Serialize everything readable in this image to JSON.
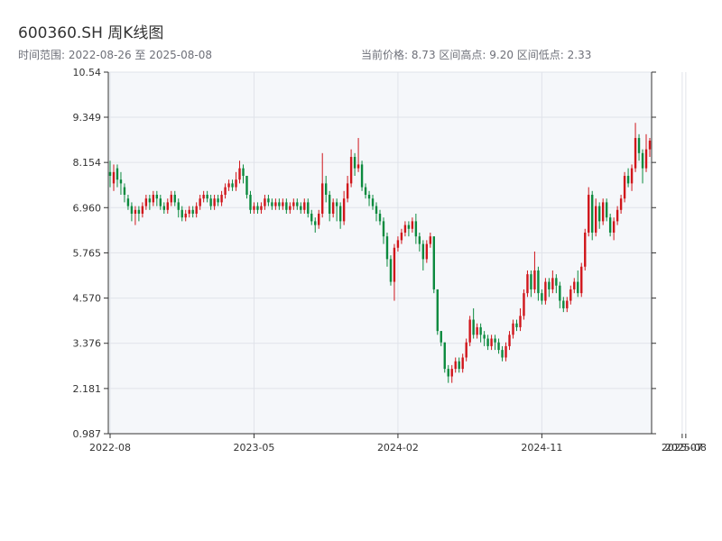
{
  "header": {
    "title": "600360.SH 周K线图",
    "range_text": "时间范围: 2022-08-26 至 2025-08-08",
    "stats_text": "当前价格: 8.73   区间高点: 9.20   区间低点: 2.33"
  },
  "colors": {
    "up": "#d0161b",
    "down": "#0b8a3e",
    "plot_bg": "#f5f7fa",
    "grid": "#e0e3ea",
    "axis": "#333333"
  },
  "chart_data": {
    "type": "candlestick",
    "title": "600360.SH 周K线图",
    "y_axis": {
      "min": 0.987,
      "max": 10.54,
      "ticks": [
        0.987,
        2.181,
        3.376,
        4.57,
        5.765,
        6.96,
        8.154,
        9.349,
        10.54
      ],
      "tick_labels": [
        "0.987",
        "2.181",
        "3.376",
        "4.570",
        "5.765",
        "6.960",
        "8.154",
        "9.349",
        "10.54"
      ]
    },
    "x_axis": {
      "tick_labels": [
        "2022-08",
        "2023-05",
        "2024-02",
        "2024-11",
        "2025-07",
        "2025-08"
      ],
      "tick_index": [
        0,
        40,
        80,
        120,
        159,
        160
      ]
    },
    "grid": true,
    "candles": [
      [
        7.9,
        7.8,
        8.2,
        7.5
      ],
      [
        7.6,
        7.9,
        8.1,
        7.4
      ],
      [
        8.0,
        7.7,
        8.1,
        7.5
      ],
      [
        7.7,
        7.6,
        7.9,
        7.3
      ],
      [
        7.5,
        7.3,
        7.6,
        7.1
      ],
      [
        7.2,
        7.0,
        7.3,
        6.9
      ],
      [
        7.0,
        6.8,
        7.1,
        6.6
      ],
      [
        6.8,
        6.9,
        7.0,
        6.5
      ],
      [
        6.9,
        6.8,
        7.0,
        6.6
      ],
      [
        6.8,
        7.0,
        7.1,
        6.7
      ],
      [
        7.0,
        7.2,
        7.3,
        6.9
      ],
      [
        7.2,
        7.1,
        7.3,
        6.9
      ],
      [
        7.1,
        7.3,
        7.4,
        7.0
      ],
      [
        7.3,
        7.2,
        7.4,
        7.0
      ],
      [
        7.2,
        7.0,
        7.3,
        6.9
      ],
      [
        7.0,
        6.9,
        7.1,
        6.8
      ],
      [
        6.9,
        7.1,
        7.2,
        6.8
      ],
      [
        7.1,
        7.3,
        7.4,
        7.0
      ],
      [
        7.3,
        7.1,
        7.4,
        7.0
      ],
      [
        7.1,
        6.9,
        7.2,
        6.7
      ],
      [
        6.9,
        6.7,
        7.0,
        6.6
      ],
      [
        6.7,
        6.8,
        6.9,
        6.6
      ],
      [
        6.8,
        6.9,
        7.0,
        6.7
      ],
      [
        6.9,
        6.8,
        7.0,
        6.7
      ],
      [
        6.8,
        7.0,
        7.1,
        6.7
      ],
      [
        7.0,
        7.2,
        7.3,
        6.9
      ],
      [
        7.2,
        7.3,
        7.4,
        7.1
      ],
      [
        7.3,
        7.2,
        7.4,
        7.1
      ],
      [
        7.2,
        7.0,
        7.3,
        6.9
      ],
      [
        7.0,
        7.2,
        7.3,
        6.9
      ],
      [
        7.2,
        7.1,
        7.3,
        7.0
      ],
      [
        7.1,
        7.3,
        7.4,
        7.0
      ],
      [
        7.3,
        7.5,
        7.6,
        7.2
      ],
      [
        7.5,
        7.6,
        7.7,
        7.4
      ],
      [
        7.6,
        7.5,
        7.7,
        7.4
      ],
      [
        7.5,
        7.7,
        7.9,
        7.4
      ],
      [
        7.7,
        8.0,
        8.2,
        7.6
      ],
      [
        8.0,
        7.8,
        8.1,
        7.6
      ],
      [
        7.8,
        7.3,
        7.8,
        7.2
      ],
      [
        7.3,
        6.9,
        7.4,
        6.8
      ],
      [
        6.9,
        7.0,
        7.1,
        6.8
      ],
      [
        7.0,
        6.9,
        7.1,
        6.8
      ],
      [
        6.9,
        7.0,
        7.1,
        6.8
      ],
      [
        7.0,
        7.2,
        7.3,
        6.9
      ],
      [
        7.2,
        7.1,
        7.3,
        7.0
      ],
      [
        7.1,
        7.0,
        7.2,
        6.9
      ],
      [
        7.0,
        7.1,
        7.2,
        6.9
      ],
      [
        7.1,
        7.0,
        7.2,
        6.9
      ],
      [
        7.0,
        7.1,
        7.2,
        6.9
      ],
      [
        7.1,
        6.9,
        7.2,
        6.8
      ],
      [
        6.9,
        7.0,
        7.1,
        6.8
      ],
      [
        7.0,
        7.1,
        7.2,
        6.9
      ],
      [
        7.1,
        7.0,
        7.2,
        6.9
      ],
      [
        7.0,
        6.9,
        7.1,
        6.8
      ],
      [
        6.9,
        7.1,
        7.2,
        6.8
      ],
      [
        7.1,
        6.8,
        7.2,
        6.7
      ],
      [
        6.8,
        6.6,
        6.9,
        6.5
      ],
      [
        6.6,
        6.5,
        6.7,
        6.3
      ],
      [
        6.5,
        6.8,
        6.9,
        6.4
      ],
      [
        6.8,
        7.6,
        8.4,
        6.7
      ],
      [
        7.6,
        7.3,
        7.8,
        7.1
      ],
      [
        7.3,
        6.8,
        7.4,
        6.6
      ],
      [
        6.8,
        7.1,
        7.2,
        6.7
      ],
      [
        7.1,
        7.0,
        7.2,
        6.6
      ],
      [
        7.0,
        6.6,
        7.1,
        6.4
      ],
      [
        6.6,
        7.2,
        7.4,
        6.5
      ],
      [
        7.2,
        7.6,
        7.8,
        7.1
      ],
      [
        7.6,
        8.3,
        8.5,
        7.5
      ],
      [
        8.3,
        8.0,
        8.4,
        7.8
      ],
      [
        8.0,
        8.1,
        8.8,
        7.9
      ],
      [
        8.1,
        7.5,
        8.2,
        7.4
      ],
      [
        7.5,
        7.3,
        7.6,
        7.2
      ],
      [
        7.3,
        7.2,
        7.4,
        7.0
      ],
      [
        7.2,
        7.0,
        7.3,
        6.9
      ],
      [
        7.0,
        6.8,
        7.1,
        6.6
      ],
      [
        6.8,
        6.6,
        6.9,
        6.5
      ],
      [
        6.6,
        6.2,
        6.7,
        6.0
      ],
      [
        6.2,
        5.6,
        6.3,
        5.4
      ],
      [
        5.6,
        5.0,
        5.7,
        4.9
      ],
      [
        5.0,
        5.9,
        6.0,
        4.5
      ],
      [
        5.9,
        6.1,
        6.2,
        5.8
      ],
      [
        6.1,
        6.3,
        6.4,
        6.0
      ],
      [
        6.3,
        6.5,
        6.6,
        6.2
      ],
      [
        6.5,
        6.4,
        6.6,
        6.2
      ],
      [
        6.4,
        6.6,
        6.7,
        6.3
      ],
      [
        6.6,
        6.2,
        6.8,
        6.0
      ],
      [
        6.2,
        6.0,
        6.3,
        5.8
      ],
      [
        6.0,
        5.6,
        6.1,
        5.3
      ],
      [
        5.6,
        6.0,
        6.1,
        5.5
      ],
      [
        6.0,
        6.2,
        6.3,
        5.9
      ],
      [
        6.2,
        4.8,
        6.2,
        4.7
      ],
      [
        4.8,
        3.7,
        4.8,
        3.6
      ],
      [
        3.7,
        3.4,
        3.7,
        3.3
      ],
      [
        3.4,
        2.7,
        3.4,
        2.6
      ],
      [
        2.7,
        2.5,
        2.8,
        2.33
      ],
      [
        2.5,
        2.7,
        2.8,
        2.33
      ],
      [
        2.7,
        2.9,
        3.0,
        2.6
      ],
      [
        2.9,
        2.7,
        3.0,
        2.6
      ],
      [
        2.7,
        3.0,
        3.1,
        2.6
      ],
      [
        3.0,
        3.4,
        3.5,
        2.9
      ],
      [
        3.4,
        4.0,
        4.1,
        3.3
      ],
      [
        4.0,
        3.6,
        4.3,
        3.5
      ],
      [
        3.6,
        3.8,
        3.9,
        3.5
      ],
      [
        3.8,
        3.6,
        3.9,
        3.4
      ],
      [
        3.6,
        3.5,
        3.7,
        3.3
      ],
      [
        3.5,
        3.3,
        3.6,
        3.2
      ],
      [
        3.3,
        3.5,
        3.6,
        3.2
      ],
      [
        3.5,
        3.4,
        3.6,
        3.2
      ],
      [
        3.4,
        3.2,
        3.5,
        3.1
      ],
      [
        3.2,
        3.0,
        3.3,
        2.9
      ],
      [
        3.0,
        3.3,
        3.4,
        2.9
      ],
      [
        3.3,
        3.6,
        3.7,
        3.2
      ],
      [
        3.6,
        3.9,
        4.0,
        3.5
      ],
      [
        3.9,
        3.8,
        4.0,
        3.7
      ],
      [
        3.8,
        4.1,
        4.3,
        3.7
      ],
      [
        4.1,
        4.7,
        4.8,
        4.0
      ],
      [
        4.7,
        5.2,
        5.3,
        4.6
      ],
      [
        5.2,
        4.8,
        5.3,
        4.6
      ],
      [
        4.8,
        5.3,
        5.8,
        4.7
      ],
      [
        5.3,
        4.7,
        5.4,
        4.5
      ],
      [
        4.7,
        4.5,
        4.8,
        4.4
      ],
      [
        4.5,
        5.0,
        5.1,
        4.4
      ],
      [
        5.0,
        4.8,
        5.1,
        4.6
      ],
      [
        4.8,
        5.1,
        5.3,
        4.7
      ],
      [
        5.1,
        4.9,
        5.2,
        4.7
      ],
      [
        4.9,
        4.5,
        5.0,
        4.3
      ],
      [
        4.5,
        4.3,
        4.6,
        4.2
      ],
      [
        4.3,
        4.5,
        4.6,
        4.2
      ],
      [
        4.5,
        4.8,
        4.9,
        4.4
      ],
      [
        4.8,
        5.0,
        5.1,
        4.7
      ],
      [
        5.0,
        4.7,
        5.3,
        4.6
      ],
      [
        4.7,
        5.4,
        5.5,
        4.6
      ],
      [
        5.4,
        6.3,
        6.4,
        5.3
      ],
      [
        6.3,
        7.3,
        7.5,
        6.2
      ],
      [
        7.3,
        6.3,
        7.4,
        6.1
      ],
      [
        6.3,
        7.0,
        7.2,
        6.2
      ],
      [
        7.0,
        6.6,
        7.1,
        6.4
      ],
      [
        6.6,
        7.1,
        7.2,
        6.5
      ],
      [
        7.1,
        6.7,
        7.2,
        6.6
      ],
      [
        6.7,
        6.3,
        6.8,
        6.2
      ],
      [
        6.3,
        6.6,
        6.7,
        6.1
      ],
      [
        6.6,
        6.9,
        7.0,
        6.5
      ],
      [
        6.9,
        7.2,
        7.3,
        6.8
      ],
      [
        7.2,
        7.8,
        7.9,
        7.1
      ],
      [
        7.8,
        7.6,
        8.0,
        7.5
      ],
      [
        7.6,
        8.0,
        8.1,
        7.4
      ],
      [
        8.0,
        8.8,
        9.2,
        7.9
      ],
      [
        8.8,
        8.4,
        8.9,
        8.2
      ],
      [
        8.4,
        8.0,
        8.5,
        7.6
      ],
      [
        8.0,
        8.5,
        8.9,
        7.9
      ],
      [
        8.5,
        8.73,
        8.8,
        8.3
      ]
    ]
  }
}
